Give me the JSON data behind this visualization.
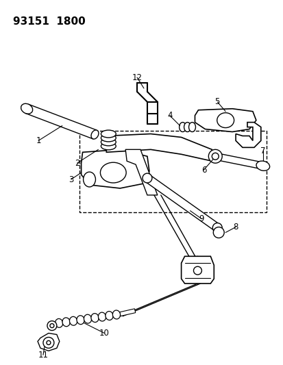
{
  "title": "93151  1800",
  "bg": "#ffffff",
  "lc": "#000000",
  "figsize": [
    4.14,
    5.33
  ],
  "dpi": 100
}
